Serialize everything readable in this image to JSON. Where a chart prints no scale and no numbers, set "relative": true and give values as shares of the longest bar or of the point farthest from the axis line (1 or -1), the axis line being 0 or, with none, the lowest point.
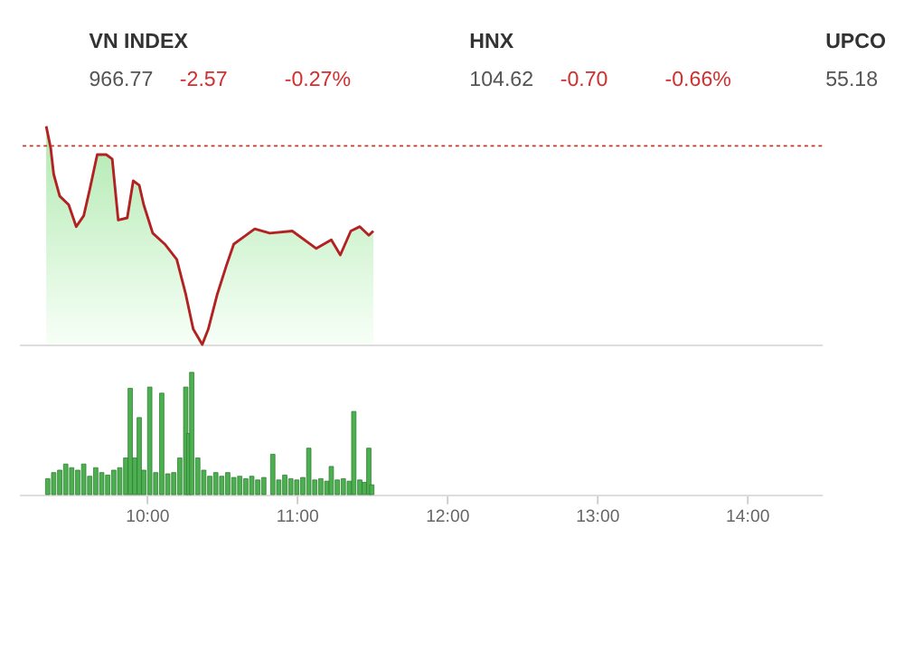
{
  "chart_data": [
    {
      "type": "other",
      "annotations": [
        "VN INDEX",
        "966.77",
        "-2.57",
        "-0.27%",
        "HNX",
        "104.62",
        "-0.70",
        "-0.66%",
        "UPCO",
        "55.18"
      ]
    },
    {
      "type": "area",
      "relative": true,
      "tick_labels": false,
      "xlim": [
        9.15,
        14.5
      ],
      "x": [
        9.33,
        9.36,
        9.38,
        9.42,
        9.48,
        9.53,
        9.58,
        9.62,
        9.67,
        9.73,
        9.77,
        9.81,
        9.87,
        9.91,
        9.95,
        9.98,
        10.04,
        10.12,
        10.2,
        10.26,
        10.31,
        10.37,
        10.41,
        10.47,
        10.53,
        10.58,
        10.66,
        10.72,
        10.82,
        10.97,
        11.13,
        11.23,
        11.29,
        11.36,
        11.42,
        11.48,
        11.51
      ],
      "series": [
        {
          "color": "#b22222",
          "values": [
            1.0,
            0.9,
            0.78,
            0.68,
            0.64,
            0.54,
            0.59,
            0.71,
            0.87,
            0.87,
            0.85,
            0.57,
            0.58,
            0.75,
            0.73,
            0.64,
            0.51,
            0.46,
            0.39,
            0.23,
            0.07,
            0,
            0.07,
            0.23,
            0.36,
            0.46,
            0.5,
            0.53,
            0.51,
            0.52,
            0.44,
            0.48,
            0.41,
            0.52,
            0.54,
            0.5,
            0.52
          ]
        }
      ],
      "ref_lines": [
        {
          "axis": "y",
          "value": 0.91,
          "color": "#c0392b",
          "line_style": "dotted"
        }
      ]
    },
    {
      "type": "bar",
      "relative": true,
      "tick_labels": "x",
      "xlim": [
        9.15,
        14.5
      ],
      "xticks": [
        {
          "value": 10,
          "label": "10:00"
        },
        {
          "value": 11,
          "label": "11:00"
        },
        {
          "value": 12,
          "label": "12:00"
        },
        {
          "value": 13,
          "label": "13:00"
        },
        {
          "value": 14,
          "label": "14:00"
        }
      ],
      "x": [
        9.34,
        9.38,
        9.42,
        9.46,
        9.5,
        9.54,
        9.58,
        9.62,
        9.66,
        9.7,
        9.74,
        9.78,
        9.82,
        9.86,
        9.89,
        9.92,
        9.95,
        9.98,
        10.02,
        10.06,
        10.1,
        10.14,
        10.18,
        10.22,
        10.26,
        10.28,
        10.3,
        10.34,
        10.38,
        10.42,
        10.46,
        10.5,
        10.54,
        10.58,
        10.62,
        10.66,
        10.7,
        10.74,
        10.78,
        10.84,
        10.88,
        10.92,
        10.96,
        11.0,
        11.04,
        11.08,
        11.12,
        11.16,
        11.2,
        11.23,
        11.27,
        11.31,
        11.35,
        11.38,
        11.42,
        11.45,
        11.48,
        11.5
      ],
      "series": [
        {
          "color": "#4caf50",
          "values": [
            0.13,
            0.18,
            0.2,
            0.25,
            0.22,
            0.2,
            0.25,
            0.15,
            0.22,
            0.18,
            0.16,
            0.2,
            0.22,
            0.3,
            0.87,
            0.3,
            0.63,
            0.2,
            0.88,
            0.18,
            0.83,
            0.17,
            0.18,
            0.3,
            0.88,
            0.5,
            1.0,
            0.3,
            0.2,
            0.15,
            0.18,
            0.15,
            0.18,
            0.14,
            0.15,
            0.13,
            0.15,
            0.12,
            0.14,
            0.33,
            0.12,
            0.16,
            0.13,
            0.12,
            0.14,
            0.38,
            0.12,
            0.13,
            0.11,
            0.23,
            0.12,
            0.13,
            0.11,
            0.68,
            0.12,
            0.1,
            0.38,
            0.08
          ]
        }
      ]
    }
  ]
}
